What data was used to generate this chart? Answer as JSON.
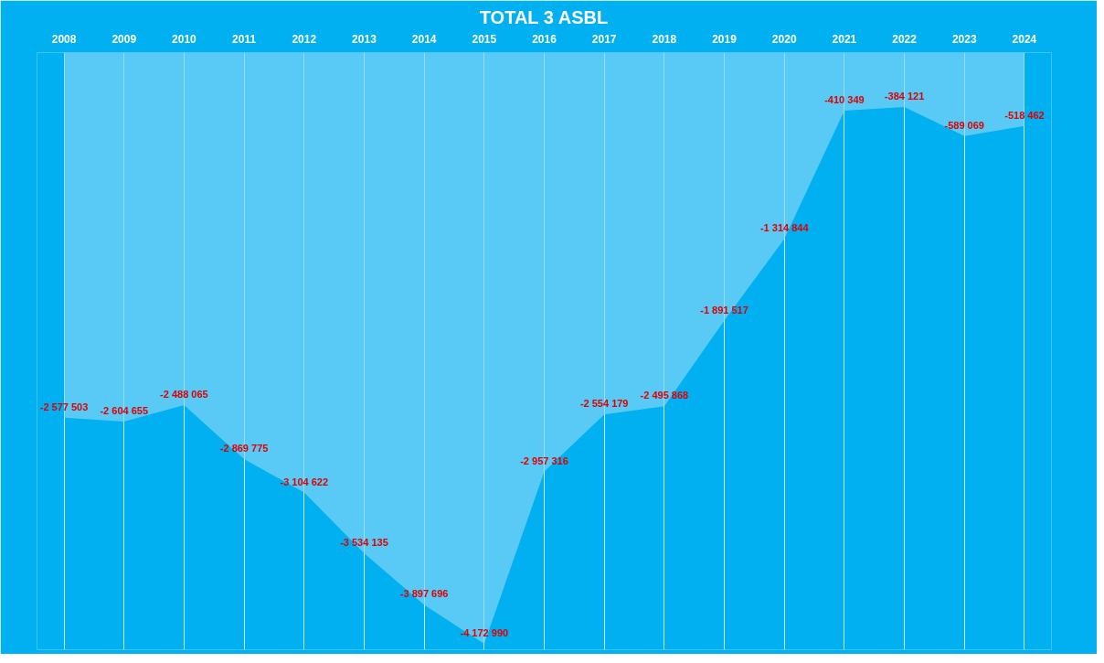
{
  "chart_data": {
    "type": "area",
    "title": "TOTAL 3 ASBL",
    "categories": [
      "2008",
      "2009",
      "2010",
      "2011",
      "2012",
      "2013",
      "2014",
      "2015",
      "2016",
      "2017",
      "2018",
      "2019",
      "2020",
      "2021",
      "2022",
      "2023",
      "2024"
    ],
    "values": [
      -2577503,
      -2604655,
      -2488065,
      -2869775,
      -3104622,
      -3534135,
      -3897696,
      -4172990,
      -2957316,
      -2554179,
      -2495868,
      -1891517,
      -1314844,
      -410349,
      -384121,
      -589069,
      -518462
    ],
    "value_labels": [
      "-2 577 503",
      "-2 604 655",
      "-2 488 065",
      "-2 869 775",
      "-3 104 622",
      "-3 534 135",
      "-3 897 696",
      "-4 172 990",
      "-2 957 316",
      "-2 554 179",
      "-2 495 868",
      "-1 891 517",
      "-1 314 844",
      "-410 349",
      "-384 121",
      "-589 069",
      "-518 462"
    ],
    "color": "#7fd6f7",
    "grid": "x"
  }
}
